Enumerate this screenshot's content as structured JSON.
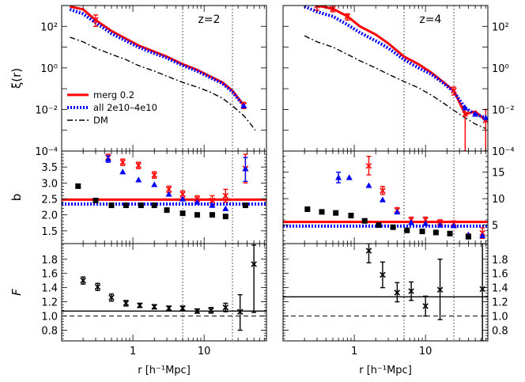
{
  "chart_data": {
    "type": "scatter",
    "x_label": "r [h⁻¹Mpc]",
    "x_ticks": [
      "1",
      "10"
    ],
    "panels": [
      {
        "id": "xi_left",
        "row": 0,
        "col": 0,
        "y_label": "ξ(r)",
        "y_log": true,
        "ylim": [
          0.0001,
          1000
        ],
        "y_tick_labels": [
          "10²",
          "10⁰",
          "10⁻²",
          "10⁻⁴"
        ],
        "annotation": "z=2",
        "legend": [
          {
            "label": "merg 0.2",
            "color": "#ff0000",
            "style": "solid"
          },
          {
            "label": "all 2e10–4e10",
            "color": "#0000ff",
            "style": "dotted"
          },
          {
            "label": "DM",
            "color": "#000000",
            "style": "dashdot"
          }
        ],
        "lines": [
          {
            "color": "#ff0000",
            "style": "solid",
            "x": [
              0.13,
              0.2,
              0.3,
              0.5,
              0.8,
              1.2,
              2.0,
              3.0,
              5.0,
              8.0,
              12.0,
              18.0,
              25.0,
              36.0
            ],
            "y": [
              900,
              650,
              200,
              60,
              25,
              12,
              6,
              3.5,
              1.5,
              0.8,
              0.4,
              0.2,
              0.08,
              0.016
            ]
          },
          {
            "color": "#0000ff",
            "style": "dotted",
            "x": [
              0.13,
              0.2,
              0.3,
              0.5,
              0.8,
              1.2,
              2.0,
              3.0,
              5.0,
              8.0,
              12.0,
              18.0,
              25.0,
              36.0
            ],
            "y": [
              650,
              400,
              150,
              45,
              20,
              10,
              5,
              3.0,
              1.3,
              0.7,
              0.35,
              0.18,
              0.07,
              0.015
            ]
          },
          {
            "color": "#000000",
            "style": "dashdot",
            "x": [
              0.13,
              0.2,
              0.3,
              0.5,
              0.8,
              1.2,
              2.0,
              3.0,
              5.0,
              8.0,
              12.0,
              18.0,
              25.0,
              36.0,
              45.0,
              52.0
            ],
            "y": [
              30,
              18,
              9,
              4.5,
              2.5,
              1.3,
              0.7,
              0.4,
              0.2,
              0.12,
              0.07,
              0.035,
              0.015,
              0.005,
              0.002,
              0.001
            ]
          }
        ],
        "points": [
          {
            "color": "#ff0000",
            "marker": "x",
            "x": [
              0.3
            ],
            "y": [
              200
            ],
            "err": [
              [
                100,
                350
              ]
            ]
          },
          {
            "color": "#ff0000",
            "marker": "x",
            "x": [
              36.0
            ],
            "y": [
              0.016
            ],
            "err": [
              [
                0.011,
                0.022
              ]
            ]
          },
          {
            "color": "#0000ff",
            "marker": "tri",
            "x": [
              36.0
            ],
            "y": [
              0.015
            ],
            "err": null
          }
        ]
      },
      {
        "id": "xi_right",
        "row": 0,
        "col": 1,
        "y_label": "",
        "y_log": true,
        "ylim": [
          0.0001,
          1000
        ],
        "y_tick_labels": [
          "10²",
          "10⁰",
          "10⁻²",
          "10⁻⁴"
        ],
        "annotation": "z=4",
        "lines": [
          {
            "color": "#ff0000",
            "style": "solid",
            "x": [
              0.2,
              0.3,
              0.5,
              0.8,
              1.2,
              2.0,
              3.0,
              5.0,
              8.0,
              12.0,
              18.0,
              25.0,
              36.0,
              50.0,
              70.0
            ],
            "y": [
              1800,
              1000,
              700,
              300,
              100,
              40,
              15,
              3.5,
              1.5,
              0.6,
              0.2,
              0.08,
              0.006,
              0.008,
              0.003
            ]
          },
          {
            "color": "#0000ff",
            "style": "dotted",
            "x": [
              0.2,
              0.3,
              0.5,
              0.8,
              1.2,
              2.0,
              3.0,
              5.0,
              8.0,
              12.0,
              18.0,
              25.0,
              36.0,
              50.0,
              70.0
            ],
            "y": [
              900,
              500,
              300,
              120,
              50,
              20,
              9,
              2.5,
              1.0,
              0.5,
              0.18,
              0.07,
              0.012,
              0.006,
              0.004
            ]
          },
          {
            "color": "#000000",
            "style": "dashdot",
            "x": [
              0.2,
              0.3,
              0.5,
              0.8,
              1.2,
              2.0,
              3.0,
              5.0,
              8.0,
              12.0,
              18.0,
              25.0,
              36.0,
              50.0,
              70.0
            ],
            "y": [
              35,
              18,
              10,
              4.5,
              2.2,
              1.0,
              0.5,
              0.22,
              0.11,
              0.05,
              0.02,
              0.009,
              0.004,
              0.002,
              0.0012
            ]
          }
        ],
        "points": [
          {
            "color": "#ff0000",
            "marker": "x",
            "x": [
              0.3,
              0.5,
              0.8,
              25.0,
              36.0,
              70.0
            ],
            "y": [
              1000,
              700,
              300,
              0.08,
              0.006,
              0.003
            ],
            "err": [
              [
                600,
                1800
              ],
              [
                500,
                1000
              ],
              [
                200,
                400
              ],
              [
                0.05,
                0.12
              ],
              [
                0.0001,
                0.01
              ],
              [
                0.0001,
                0.01
              ]
            ]
          },
          {
            "color": "#0000ff",
            "marker": "tri",
            "x": [
              36.0,
              50.0,
              70.0
            ],
            "y": [
              0.012,
              0.006,
              0.004
            ],
            "err": null
          }
        ]
      },
      {
        "id": "b_left",
        "row": 1,
        "col": 0,
        "y_label": "b",
        "y_log": false,
        "ylim": [
          1.1,
          4.0
        ],
        "y_ticks": [
          1.5,
          2.0,
          2.5,
          3.0,
          3.5
        ],
        "y_tick_labels": [
          "1.5",
          "2.0",
          "2.5",
          "3.0",
          "3.5"
        ],
        "hlines": [
          {
            "y": 2.48,
            "color": "#ff0000",
            "style": "solid",
            "width": 3
          },
          {
            "y": 2.34,
            "color": "#0000ff",
            "style": "dotted",
            "width": 4
          }
        ],
        "points": [
          {
            "color": "#ff0000",
            "marker": "x",
            "x": [
              0.45,
              0.72,
              1.2,
              2.0,
              3.2,
              5.0,
              8.0,
              13.0,
              20.0,
              38.0
            ],
            "y": [
              3.8,
              3.65,
              3.55,
              3.25,
              2.8,
              2.65,
              2.5,
              2.45,
              2.6,
              3.45
            ],
            "err": [
              [
                3.7,
                3.9
              ],
              [
                3.55,
                3.75
              ],
              [
                3.45,
                3.65
              ],
              [
                3.15,
                3.35
              ],
              [
                2.7,
                2.9
              ],
              [
                2.55,
                2.75
              ],
              [
                2.4,
                2.6
              ],
              [
                2.3,
                2.6
              ],
              [
                2.4,
                2.8
              ],
              [
                3.0,
                3.9
              ]
            ]
          },
          {
            "color": "#0000ff",
            "marker": "tri",
            "x": [
              0.45,
              0.72,
              1.2,
              2.0,
              3.2,
              5.0,
              8.0,
              13.0,
              20.0,
              38.0
            ],
            "y": [
              3.75,
              3.35,
              3.1,
              2.95,
              2.65,
              2.5,
              2.4,
              2.3,
              2.2,
              3.45
            ],
            "err": [
              [
                3.65,
                3.85
              ],
              null,
              null,
              null,
              null,
              null,
              null,
              null,
              null,
              [
                3.05,
                3.8
              ]
            ]
          },
          {
            "color": "#000000",
            "marker": "square",
            "x": [
              0.17,
              0.3,
              0.5,
              0.8,
              1.3,
              2.0,
              3.0,
              5.0,
              8.0,
              13.0,
              20.0,
              38.0
            ],
            "y": [
              2.9,
              2.45,
              2.3,
              2.3,
              2.3,
              2.3,
              2.15,
              2.05,
              2.0,
              2.0,
              1.95,
              2.3
            ],
            "err": null
          }
        ]
      },
      {
        "id": "b_right",
        "row": 1,
        "col": 1,
        "y_label": "",
        "y_log": false,
        "ylim": [
          1.5,
          19.0
        ],
        "y_ticks": [
          5,
          10,
          15
        ],
        "y_tick_labels": [
          "5",
          "10",
          "15"
        ],
        "hlines": [
          {
            "y": 5.6,
            "color": "#ff0000",
            "style": "solid",
            "width": 3
          },
          {
            "y": 4.8,
            "color": "#0000ff",
            "style": "dotted",
            "width": 4
          }
        ],
        "points": [
          {
            "color": "#ff0000",
            "marker": "x",
            "x": [
              1.6,
              2.5,
              4.0,
              6.3,
              10.0,
              16.0,
              25.0,
              40.0,
              63.0
            ],
            "y": [
              16.2,
              11.5,
              7.8,
              6.0,
              6.0,
              5.5,
              5.3,
              2.9,
              3.5
            ],
            "err": [
              [
                14.5,
                18.0
              ],
              [
                10.8,
                12.3
              ],
              [
                7.3,
                8.3
              ],
              [
                5.5,
                6.5
              ],
              [
                5.5,
                6.5
              ],
              [
                5.0,
                6.0
              ],
              [
                4.8,
                5.8
              ],
              [
                2.5,
                3.3
              ],
              [
                2.5,
                4.5
              ]
            ]
          },
          {
            "color": "#0000ff",
            "marker": "tri",
            "x": [
              0.6,
              0.85,
              1.6,
              2.5,
              4.0,
              6.3,
              10.0,
              16.0,
              25.0,
              40.0,
              63.0
            ],
            "y": [
              14.0,
              14.0,
              12.5,
              9.8,
              7.5,
              5.5,
              5.3,
              5.0,
              4.9,
              3.2,
              3.0
            ],
            "err": [
              [
                13.0,
                15.0
              ],
              null,
              null,
              null,
              null,
              null,
              null,
              null,
              null,
              null,
              null
            ]
          },
          {
            "color": "#000000",
            "marker": "square",
            "x": [
              0.22,
              0.35,
              0.55,
              0.9,
              1.4,
              2.2,
              3.5,
              5.5,
              9.0,
              14.0,
              22.0,
              40.0
            ],
            "y": [
              8.0,
              7.5,
              7.3,
              6.8,
              5.8,
              5.0,
              4.6,
              4.0,
              3.8,
              3.6,
              3.4,
              2.8
            ],
            "err": null
          }
        ]
      },
      {
        "id": "F_left",
        "row": 2,
        "col": 0,
        "y_label": "F",
        "y_log": false,
        "ylim": [
          0.65,
          2.02
        ],
        "y_ticks": [
          0.8,
          1.0,
          1.2,
          1.4,
          1.6,
          1.8
        ],
        "y_tick_labels": [
          "0.8",
          "1.0",
          "1.2",
          "1.4",
          "1.6",
          "1.8"
        ],
        "hlines": [
          {
            "y": 1.0,
            "color": "#000000",
            "style": "dashed",
            "width": 1
          },
          {
            "y": 1.07,
            "color": "#000000",
            "style": "solid",
            "width": 1.3
          }
        ],
        "points": [
          {
            "color": "#000000",
            "marker": "x",
            "x": [
              0.2,
              0.32,
              0.5,
              0.8,
              1.25,
              2.0,
              3.2,
              5.0,
              8.0,
              12.5,
              20.0,
              32.0,
              50.0
            ],
            "y": [
              1.5,
              1.41,
              1.26,
              1.18,
              1.15,
              1.13,
              1.11,
              1.11,
              1.07,
              1.08,
              1.12,
              1.06,
              1.73
            ],
            "err": [
              [
                1.45,
                1.55
              ],
              [
                1.36,
                1.46
              ],
              [
                1.21,
                1.31
              ],
              [
                1.14,
                1.22
              ],
              [
                1.12,
                1.18
              ],
              [
                1.1,
                1.16
              ],
              [
                1.08,
                1.14
              ],
              [
                1.08,
                1.14
              ],
              [
                1.04,
                1.1
              ],
              [
                1.04,
                1.12
              ],
              [
                1.06,
                1.18
              ],
              [
                0.8,
                1.3
              ],
              [
                1.05,
                2.0
              ]
            ]
          }
        ]
      },
      {
        "id": "F_right",
        "row": 2,
        "col": 1,
        "y_label": "",
        "y_log": false,
        "ylim": [
          0.65,
          2.02
        ],
        "y_ticks": [
          0.8,
          1.0,
          1.2,
          1.4,
          1.6,
          1.8
        ],
        "y_tick_labels": [
          "0.8",
          "1.0",
          "1.2",
          "1.4",
          "1.6",
          "1.8"
        ],
        "hlines": [
          {
            "y": 1.0,
            "color": "#000000",
            "style": "dashed",
            "width": 1
          },
          {
            "y": 1.27,
            "color": "#000000",
            "style": "solid",
            "width": 1.3
          }
        ],
        "points": [
          {
            "color": "#000000",
            "marker": "x",
            "x": [
              1.6,
              2.5,
              4.0,
              6.3,
              10.0,
              16.0,
              63.0
            ],
            "y": [
              1.92,
              1.58,
              1.33,
              1.35,
              1.14,
              1.37,
              1.38
            ],
            "err": [
              [
                1.75,
                2.02
              ],
              [
                1.4,
                1.76
              ],
              [
                1.2,
                1.47
              ],
              [
                1.22,
                1.48
              ],
              [
                1.0,
                1.28
              ],
              [
                0.95,
                1.8
              ],
              [
                0.65,
                2.02
              ]
            ]
          }
        ]
      }
    ]
  }
}
